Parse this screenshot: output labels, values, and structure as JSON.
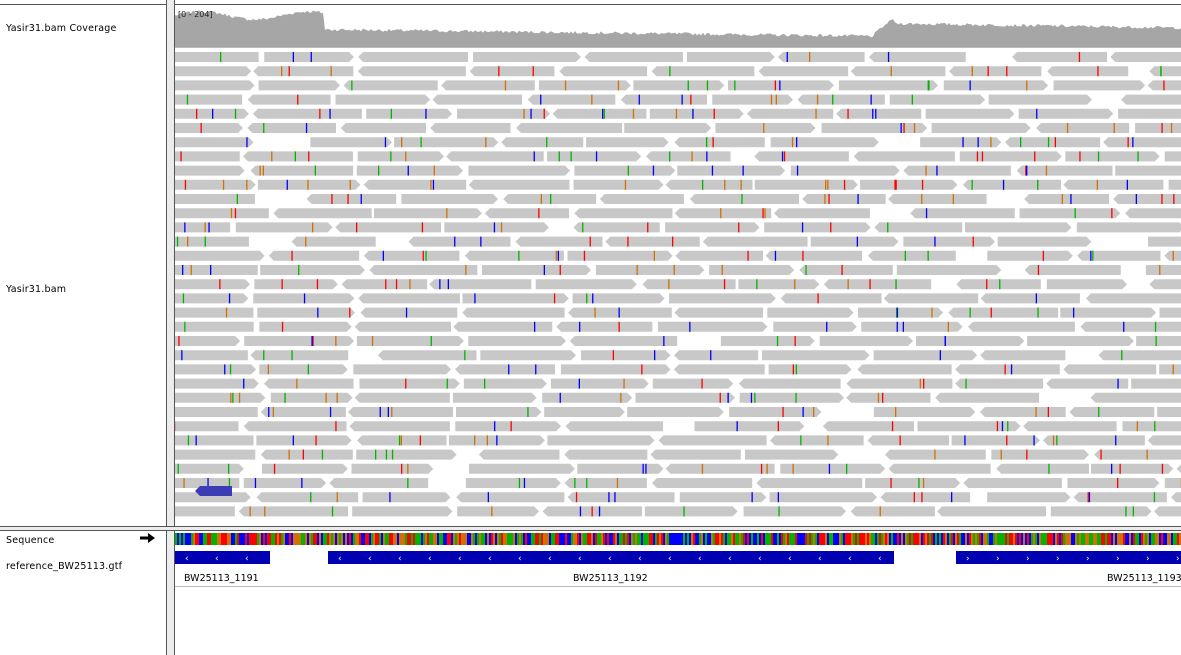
{
  "tracks": {
    "coverage_name": "Yasir31.bam Coverage",
    "reads_name": "Yasir31.bam",
    "sequence_name": "Sequence",
    "annotation_name": "reference_BW25113.gtf"
  },
  "coverage": {
    "range_label": "[0 - 204]"
  },
  "genes": [
    {
      "name": "BW25113_1191",
      "strand": "-"
    },
    {
      "name": "BW25113_1192",
      "strand": "-"
    },
    {
      "name": "BW25113_1193",
      "strand": "+"
    }
  ],
  "icons": {
    "sequence_strand": "right-arrow-icon"
  },
  "colors": {
    "read": "#c8c8c8",
    "coverage": "#a6a6a6",
    "mismatch_A": "#00b400",
    "mismatch_C": "#0000ff",
    "mismatch_G": "#d17105",
    "mismatch_T": "#ff0000",
    "gene_feature": "#0000b2",
    "highlight_read": "#3c3cb4"
  }
}
